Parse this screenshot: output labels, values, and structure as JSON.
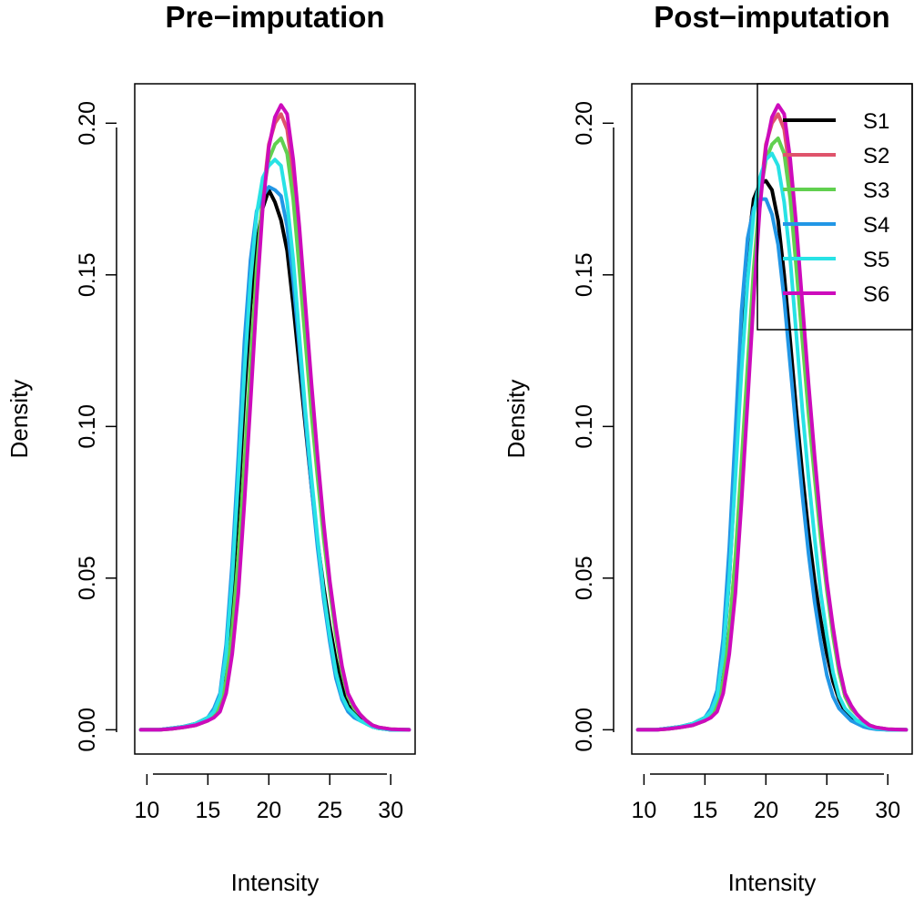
{
  "chart_data": [
    {
      "type": "line",
      "title": "Pre−imputation",
      "xlabel": "Intensity",
      "ylabel": "Density",
      "xlim": [
        9,
        32
      ],
      "ylim": [
        -0.008,
        0.213
      ],
      "xticks": [
        "10",
        "15",
        "20",
        "25",
        "30"
      ],
      "yticks": [
        "0.00",
        "0.05",
        "0.10",
        "0.15",
        "0.20"
      ],
      "grid": false,
      "legend": null,
      "x": [
        9.5,
        11,
        12,
        13,
        14,
        15,
        15.5,
        16,
        16.5,
        17,
        17.5,
        18,
        18.5,
        19,
        19.5,
        20,
        20.5,
        21,
        21.5,
        22,
        22.5,
        23,
        23.5,
        24,
        24.5,
        25,
        25.5,
        26,
        26.5,
        27,
        27.5,
        28,
        28.5,
        29,
        30,
        31.5
      ],
      "series": [
        {
          "name": "S1",
          "color": "#000000",
          "values": [
            0,
            0,
            0.0005,
            0.001,
            0.002,
            0.004,
            0.006,
            0.01,
            0.022,
            0.045,
            0.075,
            0.11,
            0.14,
            0.16,
            0.172,
            0.178,
            0.174,
            0.168,
            0.158,
            0.14,
            0.12,
            0.1,
            0.08,
            0.062,
            0.047,
            0.034,
            0.023,
            0.014,
            0.008,
            0.006,
            0.004,
            0.002,
            0.001,
            0.0005,
            0,
            0
          ]
        },
        {
          "name": "S2",
          "color": "#DF536B",
          "values": [
            0,
            0,
            0.0003,
            0.0008,
            0.0015,
            0.003,
            0.005,
            0.008,
            0.016,
            0.032,
            0.055,
            0.085,
            0.115,
            0.148,
            0.175,
            0.193,
            0.2,
            0.203,
            0.198,
            0.183,
            0.16,
            0.135,
            0.11,
            0.088,
            0.066,
            0.048,
            0.033,
            0.02,
            0.011,
            0.007,
            0.005,
            0.003,
            0.0015,
            0.0008,
            0.0002,
            0
          ]
        },
        {
          "name": "S3",
          "color": "#61D04F",
          "values": [
            0,
            0,
            0.0003,
            0.0008,
            0.0015,
            0.003,
            0.005,
            0.008,
            0.016,
            0.033,
            0.057,
            0.088,
            0.12,
            0.152,
            0.176,
            0.188,
            0.193,
            0.195,
            0.19,
            0.175,
            0.152,
            0.128,
            0.104,
            0.083,
            0.063,
            0.046,
            0.031,
            0.019,
            0.011,
            0.007,
            0.005,
            0.003,
            0.0015,
            0.0008,
            0.0002,
            0
          ]
        },
        {
          "name": "S4",
          "color": "#2297E6",
          "values": [
            0,
            0,
            0.0005,
            0.001,
            0.002,
            0.004,
            0.007,
            0.012,
            0.028,
            0.055,
            0.09,
            0.128,
            0.155,
            0.171,
            0.176,
            0.179,
            0.178,
            0.176,
            0.166,
            0.148,
            0.126,
            0.102,
            0.08,
            0.06,
            0.043,
            0.029,
            0.017,
            0.01,
            0.006,
            0.004,
            0.003,
            0.002,
            0.001,
            0.0005,
            0,
            0
          ]
        },
        {
          "name": "S5",
          "color": "#28E2E5",
          "values": [
            0,
            0,
            0.0005,
            0.001,
            0.002,
            0.004,
            0.006,
            0.011,
            0.025,
            0.05,
            0.083,
            0.118,
            0.148,
            0.17,
            0.182,
            0.186,
            0.188,
            0.186,
            0.174,
            0.155,
            0.13,
            0.105,
            0.083,
            0.063,
            0.045,
            0.031,
            0.019,
            0.011,
            0.007,
            0.005,
            0.003,
            0.002,
            0.001,
            0.0005,
            0,
            0
          ]
        },
        {
          "name": "S6",
          "color": "#CD0BBC",
          "values": [
            0,
            0,
            0.0003,
            0.0008,
            0.0015,
            0.003,
            0.004,
            0.006,
            0.012,
            0.025,
            0.045,
            0.075,
            0.108,
            0.142,
            0.172,
            0.192,
            0.202,
            0.206,
            0.203,
            0.188,
            0.166,
            0.14,
            0.114,
            0.09,
            0.068,
            0.049,
            0.034,
            0.021,
            0.012,
            0.008,
            0.005,
            0.003,
            0.0015,
            0.0008,
            0.0002,
            0
          ]
        }
      ]
    },
    {
      "type": "line",
      "title": "Post−imputation",
      "xlabel": "Intensity",
      "ylabel": "Density",
      "xlim": [
        9,
        32
      ],
      "ylim": [
        -0.008,
        0.213
      ],
      "xticks": [
        "10",
        "15",
        "20",
        "25",
        "30"
      ],
      "yticks": [
        "0.00",
        "0.05",
        "0.10",
        "0.15",
        "0.20"
      ],
      "grid": false,
      "legend": "top-right",
      "x": [
        9.5,
        11,
        12,
        13,
        14,
        15,
        15.5,
        16,
        16.5,
        17,
        17.5,
        18,
        18.5,
        19,
        19.5,
        20,
        20.5,
        21,
        21.5,
        22,
        22.5,
        23,
        23.5,
        24,
        24.5,
        25,
        25.5,
        26,
        26.5,
        27,
        27.5,
        28,
        28.5,
        29,
        30,
        31.5
      ],
      "series": [
        {
          "name": "S1",
          "color": "#000000",
          "values": [
            0,
            0,
            0.0005,
            0.001,
            0.002,
            0.004,
            0.006,
            0.011,
            0.024,
            0.05,
            0.085,
            0.125,
            0.158,
            0.175,
            0.18,
            0.181,
            0.178,
            0.168,
            0.15,
            0.128,
            0.105,
            0.084,
            0.065,
            0.049,
            0.036,
            0.025,
            0.016,
            0.01,
            0.006,
            0.004,
            0.003,
            0.002,
            0.001,
            0.0005,
            0,
            0
          ]
        },
        {
          "name": "S2",
          "color": "#DF536B",
          "values": [
            0,
            0,
            0.0003,
            0.0008,
            0.0015,
            0.003,
            0.005,
            0.008,
            0.016,
            0.032,
            0.055,
            0.085,
            0.115,
            0.148,
            0.175,
            0.193,
            0.2,
            0.203,
            0.198,
            0.183,
            0.16,
            0.135,
            0.11,
            0.088,
            0.066,
            0.048,
            0.033,
            0.02,
            0.011,
            0.007,
            0.005,
            0.003,
            0.0015,
            0.0008,
            0.0002,
            0
          ]
        },
        {
          "name": "S3",
          "color": "#61D04F",
          "values": [
            0,
            0,
            0.0003,
            0.0008,
            0.0015,
            0.003,
            0.005,
            0.008,
            0.016,
            0.033,
            0.057,
            0.088,
            0.12,
            0.152,
            0.176,
            0.188,
            0.193,
            0.195,
            0.19,
            0.175,
            0.152,
            0.128,
            0.104,
            0.083,
            0.063,
            0.046,
            0.031,
            0.019,
            0.011,
            0.007,
            0.005,
            0.003,
            0.0015,
            0.0008,
            0.0002,
            0
          ]
        },
        {
          "name": "S4",
          "color": "#2297E6",
          "values": [
            0,
            0,
            0.0005,
            0.001,
            0.002,
            0.004,
            0.007,
            0.013,
            0.03,
            0.06,
            0.098,
            0.138,
            0.162,
            0.172,
            0.175,
            0.175,
            0.17,
            0.16,
            0.142,
            0.12,
            0.098,
            0.077,
            0.058,
            0.042,
            0.029,
            0.018,
            0.011,
            0.007,
            0.005,
            0.003,
            0.002,
            0.001,
            0.0005,
            0.0002,
            0,
            0
          ]
        },
        {
          "name": "S5",
          "color": "#28E2E5",
          "values": [
            0,
            0,
            0.0005,
            0.001,
            0.002,
            0.004,
            0.006,
            0.011,
            0.025,
            0.05,
            0.083,
            0.118,
            0.148,
            0.17,
            0.182,
            0.188,
            0.19,
            0.186,
            0.174,
            0.155,
            0.13,
            0.105,
            0.083,
            0.063,
            0.045,
            0.031,
            0.019,
            0.011,
            0.007,
            0.005,
            0.003,
            0.002,
            0.001,
            0.0005,
            0,
            0
          ]
        },
        {
          "name": "S6",
          "color": "#CD0BBC",
          "values": [
            0,
            0,
            0.0003,
            0.0008,
            0.0015,
            0.003,
            0.004,
            0.006,
            0.012,
            0.025,
            0.045,
            0.075,
            0.108,
            0.142,
            0.172,
            0.192,
            0.202,
            0.206,
            0.203,
            0.188,
            0.166,
            0.14,
            0.114,
            0.09,
            0.068,
            0.049,
            0.034,
            0.021,
            0.012,
            0.008,
            0.005,
            0.003,
            0.0015,
            0.0008,
            0.0002,
            0
          ]
        }
      ]
    }
  ]
}
